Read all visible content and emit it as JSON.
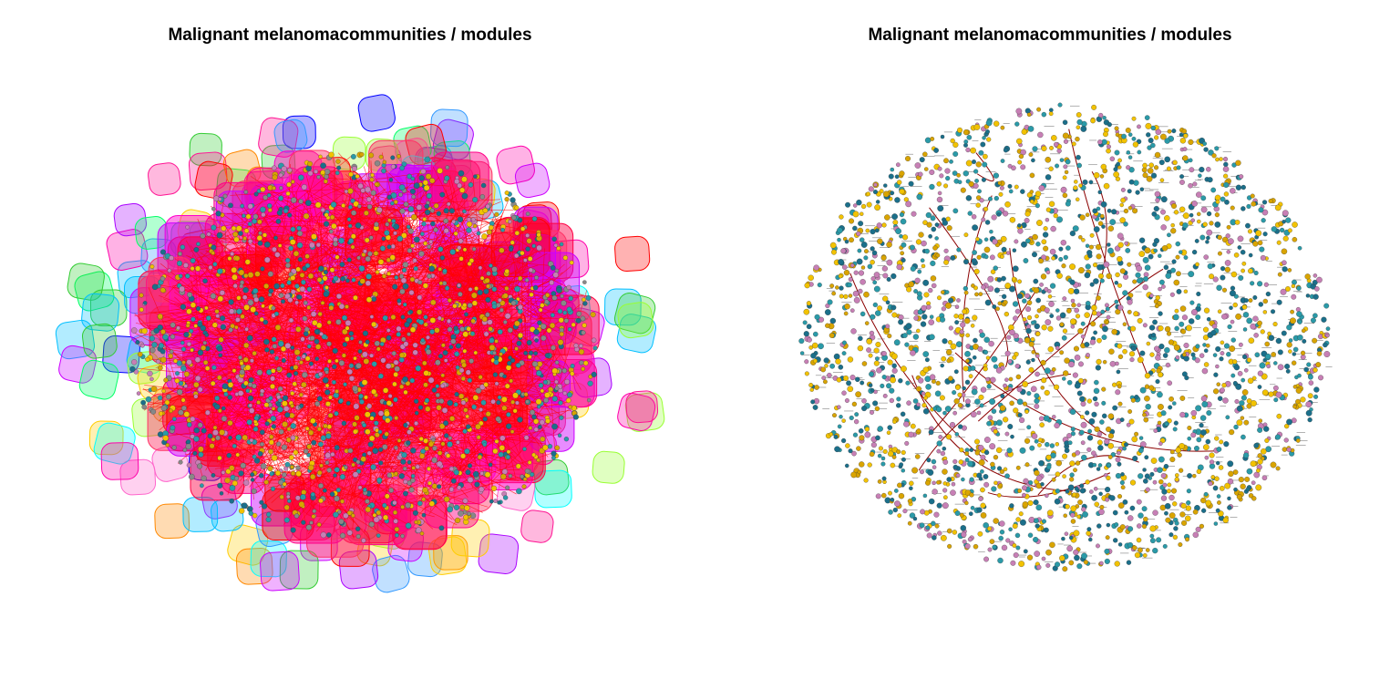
{
  "panels": [
    {
      "title": "Malignant melanomacommunities / modules",
      "style": "community-hulls"
    },
    {
      "title": "Malignant melanomacommunities / modules",
      "style": "nodes-only"
    }
  ],
  "colors": {
    "community_hulls": [
      "#ff0000",
      "#ff00aa",
      "#ff1493",
      "#cc00ff",
      "#aa00ff",
      "#0000ff",
      "#3399ff",
      "#00bfff",
      "#00ffff",
      "#00ff66",
      "#33cc33",
      "#99ff33",
      "#ffcc00",
      "#ff8800",
      "#ff66cc"
    ],
    "edges": "#ff0000",
    "nodes": [
      "#f2c200",
      "#1b6f8a",
      "#2a9aa8",
      "#d9a400",
      "#c77fb5",
      "#888888"
    ],
    "right_edges": "#8b0000"
  }
}
